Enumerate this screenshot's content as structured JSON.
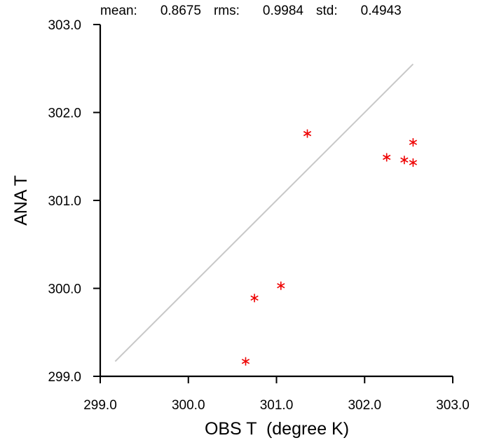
{
  "stats": {
    "mean_label": "mean:",
    "mean_value": "0.8675",
    "rms_label": "rms:",
    "rms_value": "0.9984",
    "std_label": "std:",
    "std_value": "0.4943"
  },
  "chart_data": {
    "type": "scatter",
    "xlabel": "OBS T  (degree K)",
    "ylabel": "ANA T",
    "xlim": [
      299.0,
      303.0
    ],
    "ylim": [
      299.0,
      303.0
    ],
    "xticks": [
      "299.0",
      "300.0",
      "301.0",
      "302.0",
      "303.0"
    ],
    "yticks": [
      "299.0",
      "300.0",
      "301.0",
      "302.0",
      "303.0"
    ],
    "marker": "asterisk",
    "marker_color": "#ee0000",
    "reference_line": {
      "from": [
        299.17,
        299.17
      ],
      "to": [
        302.55,
        302.55
      ],
      "color": "#c8c8c8"
    },
    "points": [
      {
        "x": 300.65,
        "y": 299.17
      },
      {
        "x": 300.75,
        "y": 299.89
      },
      {
        "x": 301.05,
        "y": 300.03
      },
      {
        "x": 301.35,
        "y": 301.76
      },
      {
        "x": 302.25,
        "y": 301.49
      },
      {
        "x": 302.45,
        "y": 301.46
      },
      {
        "x": 302.55,
        "y": 301.66
      },
      {
        "x": 302.55,
        "y": 301.43
      }
    ],
    "grid": false
  }
}
